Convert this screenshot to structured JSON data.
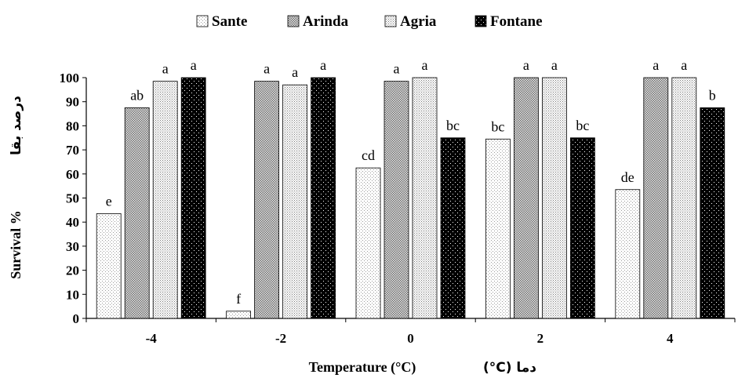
{
  "chart_data": {
    "type": "bar",
    "categories": [
      "-4",
      "-2",
      "0",
      "2",
      "4"
    ],
    "series": [
      {
        "name": "Sante",
        "pattern": "dots-light",
        "values": [
          43.5,
          3,
          62.5,
          74.5,
          53.5
        ],
        "letters": [
          "e",
          "f",
          "cd",
          "bc",
          "de"
        ]
      },
      {
        "name": "Arinda",
        "pattern": "checker",
        "values": [
          87.5,
          98.5,
          98.5,
          100,
          100
        ],
        "letters": [
          "ab",
          "a",
          "a",
          "a",
          "a"
        ]
      },
      {
        "name": "Agria",
        "pattern": "dots-dense",
        "values": [
          98.5,
          97,
          100,
          100,
          100
        ],
        "letters": [
          "a",
          "a",
          "a",
          "a",
          "a"
        ]
      },
      {
        "name": "Fontane",
        "pattern": "black-dots",
        "values": [
          100,
          100,
          75,
          75,
          87.5
        ],
        "letters": [
          "a",
          "a",
          "bc",
          "bc",
          "b"
        ]
      }
    ],
    "xlabel": "Temperature (°C)",
    "xlabel_alt": "(°C) دما",
    "ylabel": "Survival %",
    "ylabel_alt": "درصد بقا",
    "yticks": [
      0,
      10,
      20,
      30,
      40,
      50,
      60,
      70,
      80,
      90,
      100
    ],
    "ylim": [
      0,
      100
    ],
    "grid": false,
    "legend_position": "top"
  }
}
